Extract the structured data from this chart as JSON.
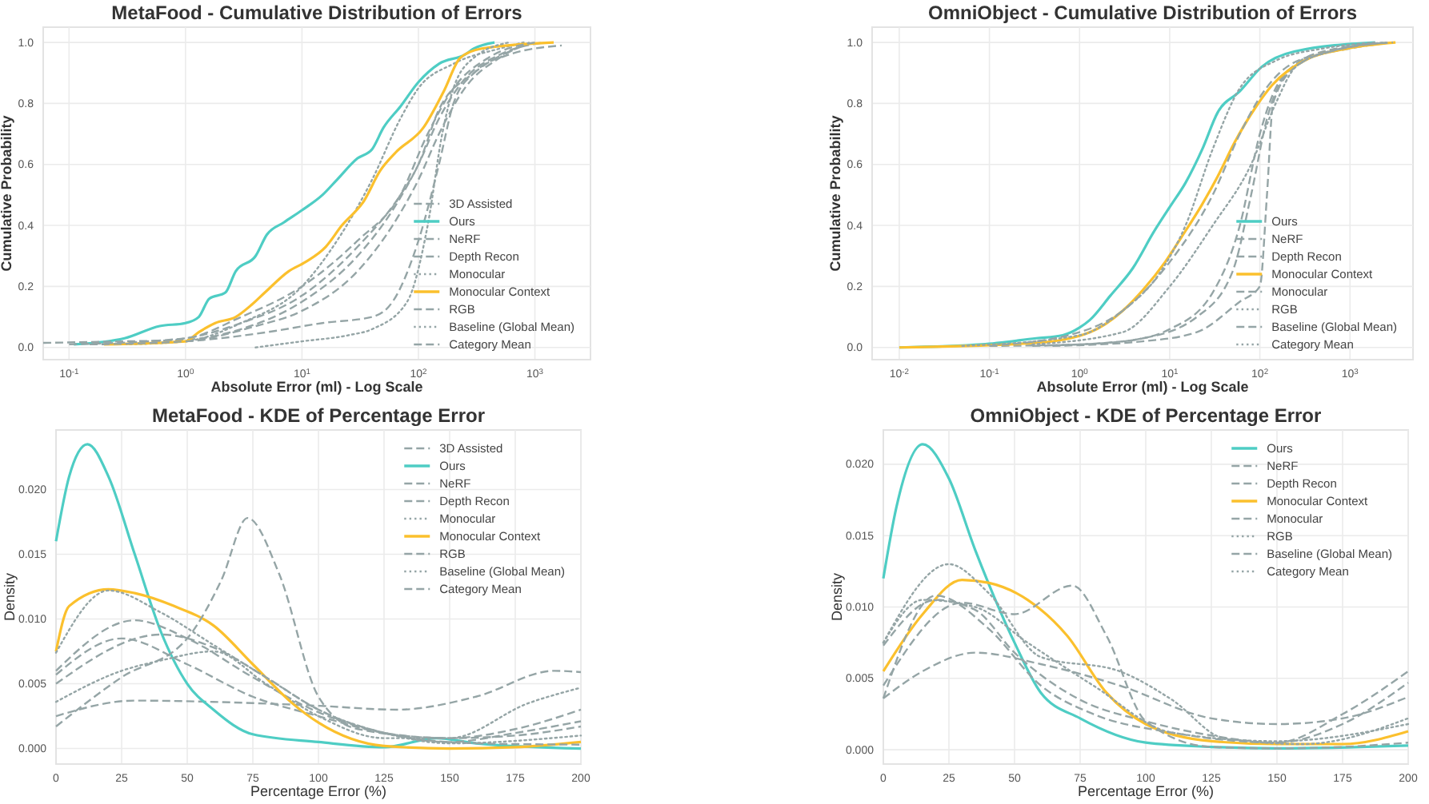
{
  "chart_data": [
    {
      "type": "line",
      "title": "MetaFood - Cumulative Distribution of Errors",
      "xlabel": "Absolute Error (ml) - Log Scale",
      "ylabel": "Cumulative Probability",
      "log": "x",
      "grid": true,
      "legend": "bottom right",
      "xlim": [
        0.06,
        3000
      ],
      "ylim": [
        -0.04,
        1.05
      ],
      "xticks": [
        {
          "value": 0.1,
          "label": "10$^{-1}$"
        },
        {
          "value": 1,
          "label": "10$^{0}$"
        },
        {
          "value": 10,
          "label": "10$^{1}$"
        },
        {
          "value": 100,
          "label": "10$^{2}$"
        },
        {
          "value": 1000,
          "label": "10$^{3}$"
        }
      ],
      "yticks": [
        {
          "value": 0,
          "label": "0.0"
        },
        0.2,
        0.4,
        0.6,
        0.8,
        {
          "value": 1,
          "label": "1.0"
        }
      ],
      "series": [
        {
          "name": "3D Assisted",
          "color": "#95a5a6",
          "line_style": "dashed",
          "x": [
            0.15,
            1,
            5,
            15,
            40,
            60,
            100,
            150,
            200,
            300,
            600,
            1700
          ],
          "values": [
            0.01,
            0.02,
            0.05,
            0.08,
            0.1,
            0.15,
            0.35,
            0.6,
            0.8,
            0.9,
            0.96,
            0.99
          ]
        },
        {
          "name": "Ours",
          "color": "#4ecdc4",
          "line_style": "solid",
          "x": [
            0.11,
            0.3,
            0.6,
            1,
            1.3,
            1.6,
            2.2,
            2.7,
            4,
            5,
            7,
            10,
            15,
            20,
            30,
            40,
            50,
            70,
            100,
            150,
            250,
            300,
            450
          ],
          "values": [
            0.01,
            0.03,
            0.07,
            0.08,
            0.1,
            0.16,
            0.18,
            0.25,
            0.3,
            0.37,
            0.41,
            0.45,
            0.5,
            0.55,
            0.62,
            0.65,
            0.72,
            0.79,
            0.87,
            0.93,
            0.96,
            0.98,
            1.0
          ]
        },
        {
          "name": "NeRF",
          "color": "#95a5a6",
          "line_style": "dashed",
          "x": [
            0.06,
            0.3,
            1,
            3,
            10,
            30,
            60,
            100,
            150,
            250,
            500,
            1200
          ],
          "values": [
            0.015,
            0.02,
            0.025,
            0.06,
            0.15,
            0.3,
            0.45,
            0.6,
            0.75,
            0.88,
            0.96,
            1.0
          ]
        },
        {
          "name": "Depth Recon",
          "color": "#95a5a6",
          "line_style": "dashed",
          "x": [
            0.2,
            1,
            3,
            10,
            30,
            70,
            100,
            150,
            300,
            600,
            1000
          ],
          "values": [
            0.01,
            0.03,
            0.08,
            0.17,
            0.33,
            0.5,
            0.6,
            0.78,
            0.9,
            0.97,
            1.0
          ]
        },
        {
          "name": "Monocular",
          "color": "#95a5a6",
          "line_style": "dotted",
          "x": [
            0.3,
            1,
            3,
            10,
            20,
            40,
            70,
            100,
            200,
            500,
            800
          ],
          "values": [
            0.01,
            0.02,
            0.08,
            0.2,
            0.35,
            0.55,
            0.75,
            0.85,
            0.93,
            0.98,
            1.0
          ]
        },
        {
          "name": "Monocular Context",
          "color": "#fbc02d",
          "line_style": "solid",
          "x": [
            0.2,
            1,
            1.3,
            1.8,
            2.7,
            3.7,
            4.8,
            7.7,
            10.7,
            16,
            22,
            34,
            47,
            64,
            110,
            165,
            229,
            350,
            1450
          ],
          "values": [
            0.01,
            0.02,
            0.05,
            0.08,
            0.1,
            0.14,
            0.18,
            0.25,
            0.28,
            0.33,
            0.4,
            0.48,
            0.58,
            0.64,
            0.72,
            0.84,
            0.95,
            0.98,
            1.0
          ]
        },
        {
          "name": "RGB",
          "color": "#95a5a6",
          "line_style": "dashed",
          "x": [
            0.1,
            1,
            3,
            10,
            30,
            70,
            120,
            200,
            400,
            1000
          ],
          "values": [
            0.01,
            0.03,
            0.1,
            0.2,
            0.35,
            0.5,
            0.7,
            0.85,
            0.95,
            1.0
          ]
        },
        {
          "name": "Baseline (Global Mean)",
          "color": "#95a5a6",
          "line_style": "dotted",
          "x": [
            4,
            10,
            25,
            40,
            80,
            120,
            160,
            200,
            300,
            600
          ],
          "values": [
            0.0,
            0.02,
            0.04,
            0.06,
            0.15,
            0.4,
            0.7,
            0.85,
            0.95,
            1.0
          ]
        },
        {
          "name": "Category Mean",
          "color": "#95a5a6",
          "line_style": "dashed",
          "x": [
            0.15,
            1,
            4,
            10,
            30,
            60,
            100,
            150,
            250,
            500,
            900
          ],
          "values": [
            0.01,
            0.02,
            0.07,
            0.12,
            0.25,
            0.4,
            0.55,
            0.7,
            0.85,
            0.95,
            1.0
          ]
        }
      ]
    },
    {
      "type": "line",
      "title": "OmniObject - Cumulative Distribution of Errors",
      "xlabel": "Absolute Error (ml) - Log Scale",
      "ylabel": "Cumulative Probability",
      "log": "x",
      "grid": true,
      "legend": "bottom right",
      "xlim": [
        0.005,
        5000
      ],
      "ylim": [
        -0.04,
        1.05
      ],
      "xticks": [
        {
          "value": 0.01,
          "label": "10$^{-2}$"
        },
        {
          "value": 0.1,
          "label": "10$^{-1}$"
        },
        {
          "value": 1,
          "label": "10$^{0}$"
        },
        {
          "value": 10,
          "label": "10$^{1}$"
        },
        {
          "value": 100,
          "label": "10$^{2}$"
        },
        {
          "value": 1000,
          "label": "10$^{3}$"
        }
      ],
      "yticks": [
        {
          "value": 0,
          "label": "0.0"
        },
        0.2,
        0.4,
        0.6,
        0.8,
        {
          "value": 1,
          "label": "1.0"
        }
      ],
      "series": [
        {
          "name": "Ours",
          "color": "#4ecdc4",
          "line_style": "solid",
          "x": [
            0.01,
            0.083,
            0.33,
            0.65,
            1,
            1.3,
            2.2,
            3.9,
            6.7,
            10,
            15,
            23,
            34,
            60,
            105,
            240,
            1900
          ],
          "values": [
            0,
            0.01,
            0.03,
            0.04,
            0.065,
            0.09,
            0.17,
            0.26,
            0.38,
            0.46,
            0.54,
            0.65,
            0.77,
            0.84,
            0.92,
            0.97,
            1.0
          ]
        },
        {
          "name": "NeRF",
          "color": "#95a5a6",
          "line_style": "dashed",
          "x": [
            0.1,
            1,
            5,
            20,
            50,
            80,
            120,
            200,
            500,
            3000
          ],
          "values": [
            0.005,
            0.01,
            0.03,
            0.1,
            0.25,
            0.5,
            0.75,
            0.9,
            0.97,
            1.0
          ]
        },
        {
          "name": "Depth Recon",
          "color": "#95a5a6",
          "line_style": "dashed",
          "x": [
            0.3,
            3,
            10,
            30,
            60,
            100,
            150,
            300,
            1000,
            3000
          ],
          "values": [
            0.005,
            0.02,
            0.06,
            0.18,
            0.4,
            0.7,
            0.85,
            0.94,
            0.98,
            1.0
          ]
        },
        {
          "name": "Monocular Context",
          "color": "#fbc02d",
          "line_style": "solid",
          "x": [
            0.01,
            0.33,
            1.3,
            3,
            5.1,
            8.9,
            13.4,
            23,
            34,
            52,
            91,
            137,
            310,
            930,
            3200
          ],
          "values": [
            0,
            0.015,
            0.05,
            0.12,
            0.19,
            0.28,
            0.36,
            0.47,
            0.56,
            0.67,
            0.79,
            0.86,
            0.94,
            0.98,
            1.0
          ]
        },
        {
          "name": "Monocular",
          "color": "#95a5a6",
          "line_style": "dashed",
          "x": [
            0.1,
            1,
            3,
            10,
            30,
            60,
            100,
            200,
            600,
            2500
          ],
          "values": [
            0.005,
            0.05,
            0.12,
            0.28,
            0.5,
            0.7,
            0.82,
            0.92,
            0.97,
            1.0
          ]
        },
        {
          "name": "RGB",
          "color": "#95a5a6",
          "line_style": "dotted",
          "x": [
            0.05,
            1,
            3,
            8,
            15,
            30,
            60,
            150,
            500,
            2000
          ],
          "values": [
            0.005,
            0.04,
            0.12,
            0.25,
            0.4,
            0.65,
            0.85,
            0.94,
            0.98,
            1.0
          ]
        },
        {
          "name": "Baseline (Global Mean)",
          "color": "#95a5a6",
          "line_style": "dashed",
          "x": [
            0.5,
            5,
            20,
            60,
            100,
            120,
            140,
            250,
            800,
            3000
          ],
          "values": [
            0.005,
            0.02,
            0.05,
            0.15,
            0.2,
            0.5,
            0.8,
            0.92,
            0.98,
            1.0
          ]
        },
        {
          "name": "Category Mean",
          "color": "#95a5a6",
          "line_style": "dotted",
          "x": [
            0.3,
            3,
            10,
            30,
            80,
            150,
            250,
            600,
            2500
          ],
          "values": [
            0.01,
            0.05,
            0.2,
            0.4,
            0.6,
            0.8,
            0.92,
            0.97,
            1.0
          ]
        }
      ]
    },
    {
      "type": "line",
      "title": "MetaFood - KDE of Percentage Error",
      "xlabel": "Percentage Error (%)",
      "ylabel": "Density",
      "grid": true,
      "legend": "top right",
      "xlim": [
        0,
        200
      ],
      "ylim": [
        -0.0012,
        0.0246
      ],
      "xticks": [
        0,
        25,
        50,
        75,
        100,
        125,
        150,
        175,
        200
      ],
      "yticks": [
        {
          "value": 0,
          "label": "0.000"
        },
        {
          "value": 0.005,
          "label": "0.005"
        },
        {
          "value": 0.01,
          "label": "0.010"
        },
        {
          "value": 0.015,
          "label": "0.015"
        },
        {
          "value": 0.02,
          "label": "0.020"
        }
      ],
      "series": [
        {
          "name": "3D Assisted",
          "color": "#95a5a6",
          "line_style": "dashed",
          "x": [
            0,
            30,
            60,
            100,
            130,
            160,
            190,
            200
          ],
          "values": [
            0.0025,
            0.0037,
            0.0036,
            0.0033,
            0.003,
            0.004,
            0.006,
            0.0059
          ]
        },
        {
          "name": "Ours",
          "color": "#4ecdc4",
          "line_style": "solid",
          "x": [
            0,
            5,
            12,
            20,
            30,
            40,
            50,
            60,
            75,
            100,
            125,
            145,
            160,
            200
          ],
          "values": [
            0.016,
            0.021,
            0.0235,
            0.021,
            0.015,
            0.009,
            0.005,
            0.003,
            0.0011,
            0.0005,
            0.0001,
            0.0008,
            0.0004,
            0.0
          ]
        },
        {
          "name": "NeRF",
          "color": "#95a5a6",
          "line_style": "dashed",
          "x": [
            0,
            25,
            50,
            75,
            100,
            125,
            150,
            175,
            200
          ],
          "values": [
            0.0057,
            0.0085,
            0.0065,
            0.004,
            0.0025,
            0.0012,
            0.0008,
            0.001,
            0.0017
          ]
        },
        {
          "name": "Depth Recon",
          "color": "#95a5a6",
          "line_style": "dashed",
          "x": [
            0,
            30,
            50,
            75,
            100,
            125,
            150,
            175,
            200
          ],
          "values": [
            0.006,
            0.0099,
            0.0085,
            0.0055,
            0.0028,
            0.0012,
            0.0005,
            0.0012,
            0.0021
          ]
        },
        {
          "name": "Monocular",
          "color": "#95a5a6",
          "line_style": "dotted",
          "x": [
            0,
            25,
            40,
            60,
            80,
            100,
            125,
            150,
            180,
            200
          ],
          "values": [
            0.0036,
            0.006,
            0.0068,
            0.0075,
            0.005,
            0.0025,
            0.0008,
            0.0008,
            0.0035,
            0.0047
          ]
        },
        {
          "name": "Monocular Context",
          "color": "#fbc02d",
          "line_style": "solid",
          "x": [
            0,
            5,
            20,
            30,
            45,
            60,
            75,
            90,
            100,
            125,
            150,
            175,
            200
          ],
          "values": [
            0.0075,
            0.011,
            0.0123,
            0.012,
            0.011,
            0.0095,
            0.0065,
            0.0035,
            0.002,
            0.0002,
            0.0,
            0.0001,
            0.0005
          ]
        },
        {
          "name": "RGB",
          "color": "#95a5a6",
          "line_style": "dashed",
          "x": [
            0,
            25,
            50,
            63,
            73,
            85,
            100,
            115,
            150,
            175,
            200
          ],
          "values": [
            0.0017,
            0.0055,
            0.0085,
            0.013,
            0.0178,
            0.0135,
            0.004,
            0.0015,
            0.0008,
            0.0015,
            0.003
          ]
        },
        {
          "name": "Baseline (Global Mean)",
          "color": "#95a5a6",
          "line_style": "dotted",
          "x": [
            0,
            20,
            40,
            60,
            80,
            100,
            125,
            150,
            200
          ],
          "values": [
            0.0074,
            0.0122,
            0.0105,
            0.008,
            0.0055,
            0.003,
            0.0012,
            0.0004,
            0.001
          ]
        },
        {
          "name": "Category Mean",
          "color": "#95a5a6",
          "line_style": "dashed",
          "x": [
            0,
            40,
            60,
            80,
            100,
            130,
            160,
            200
          ],
          "values": [
            0.005,
            0.0088,
            0.0078,
            0.0055,
            0.003,
            0.001,
            0.0004,
            0.0003
          ]
        }
      ]
    },
    {
      "type": "line",
      "title": "OmniObject - KDE of Percentage Error",
      "xlabel": "Percentage Error (%)",
      "ylabel": "Density",
      "grid": true,
      "legend": "top right",
      "xlim": [
        0,
        200
      ],
      "ylim": [
        -0.001,
        0.0224
      ],
      "xticks": [
        0,
        25,
        50,
        75,
        100,
        125,
        150,
        175,
        200
      ],
      "yticks": [
        {
          "value": 0,
          "label": "0.000"
        },
        {
          "value": 0.005,
          "label": "0.005"
        },
        {
          "value": 0.01,
          "label": "0.010"
        },
        {
          "value": 0.015,
          "label": "0.015"
        },
        {
          "value": 0.02,
          "label": "0.020"
        }
      ],
      "series": [
        {
          "name": "Ours",
          "color": "#4ecdc4",
          "line_style": "solid",
          "x": [
            0,
            5,
            15,
            25,
            35,
            50,
            60,
            75,
            100,
            125,
            150,
            200
          ],
          "values": [
            0.012,
            0.017,
            0.0214,
            0.019,
            0.014,
            0.0075,
            0.004,
            0.0022,
            0.0005,
            0.0002,
            0.0001,
            0.0003
          ]
        },
        {
          "name": "NeRF",
          "color": "#95a5a6",
          "line_style": "dashed",
          "x": [
            0,
            15,
            35,
            60,
            90,
            125,
            150,
            175,
            200
          ],
          "values": [
            0.0036,
            0.0055,
            0.0068,
            0.006,
            0.0045,
            0.0022,
            0.0018,
            0.0022,
            0.0037
          ]
        },
        {
          "name": "Depth Recon",
          "color": "#95a5a6",
          "line_style": "dashed",
          "x": [
            0,
            20,
            35,
            50,
            75,
            100,
            125,
            150,
            175,
            200
          ],
          "values": [
            0.0073,
            0.0105,
            0.0098,
            0.0068,
            0.0035,
            0.002,
            0.001,
            0.0005,
            0.0018,
            0.0047
          ]
        },
        {
          "name": "Monocular Context",
          "color": "#fbc02d",
          "line_style": "solid",
          "x": [
            0,
            15,
            30,
            40,
            55,
            70,
            85,
            100,
            125,
            150,
            175,
            200
          ],
          "values": [
            0.0055,
            0.0095,
            0.0119,
            0.0117,
            0.0105,
            0.008,
            0.004,
            0.0018,
            0.0006,
            0.0004,
            0.0004,
            0.0013
          ]
        },
        {
          "name": "Monocular",
          "color": "#95a5a6",
          "line_style": "dashed",
          "x": [
            0,
            30,
            50,
            72,
            85,
            100,
            125,
            150,
            175,
            200
          ],
          "values": [
            0.0045,
            0.0103,
            0.0095,
            0.0115,
            0.008,
            0.002,
            0.0002,
            0.0001,
            0.0002,
            0.0005
          ]
        },
        {
          "name": "RGB",
          "color": "#95a5a6",
          "line_style": "dotted",
          "x": [
            0,
            25,
            40,
            60,
            90,
            110,
            130,
            160,
            200
          ],
          "values": [
            0.0075,
            0.013,
            0.011,
            0.0065,
            0.0055,
            0.0035,
            0.0008,
            0.0004,
            0.0022
          ]
        },
        {
          "name": "Baseline (Global Mean)",
          "color": "#95a5a6",
          "line_style": "dashed",
          "x": [
            0,
            20,
            40,
            60,
            80,
            110,
            150,
            175,
            200
          ],
          "values": [
            0.0036,
            0.0108,
            0.0085,
            0.0045,
            0.0025,
            0.0012,
            0.0005,
            0.0025,
            0.0055
          ]
        },
        {
          "name": "Category Mean",
          "color": "#95a5a6",
          "line_style": "dotted",
          "x": [
            0,
            15,
            35,
            55,
            80,
            110,
            150,
            200
          ],
          "values": [
            0.0075,
            0.0105,
            0.01,
            0.0075,
            0.0045,
            0.0012,
            0.0006,
            0.0018
          ]
        }
      ]
    }
  ]
}
